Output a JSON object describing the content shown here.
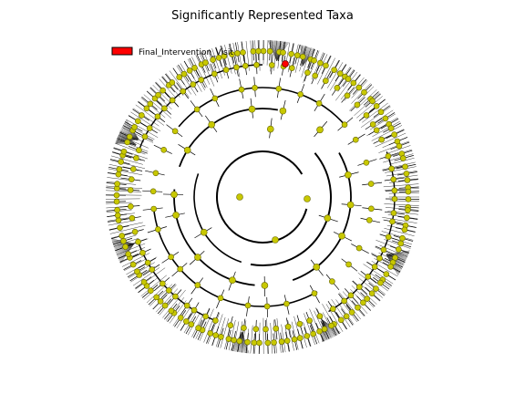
{
  "figure": {
    "title": "Significantly Represented Taxa"
  },
  "legend": {
    "entries": [
      {
        "label": "Final_Intervention_Visit",
        "color": "#ff0000"
      }
    ]
  },
  "colors": {
    "background": "#ffffff",
    "branch": "#000000",
    "node_default": "#c8c800",
    "node_edge": "#666600",
    "node_highlight": "#ff0000",
    "fan": "#3a3a3a"
  },
  "tree": {
    "type": "cladogram",
    "levels": 5,
    "highlighted_clade": "Final_Intervention_Visit",
    "node_counts_per_level": [
      3,
      14,
      30,
      70,
      140
    ],
    "arc_spans_deg": [
      [
        20,
        335
      ],
      [
        -30,
        95
      ],
      [
        95,
        185
      ],
      [
        300,
        355
      ],
      [
        205,
        285
      ],
      [
        -25,
        80
      ],
      [
        100,
        180
      ],
      [
        -10,
        30
      ]
    ]
  }
}
